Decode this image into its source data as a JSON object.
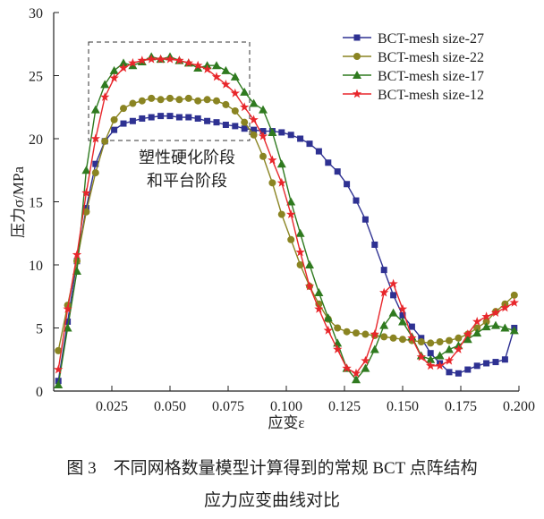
{
  "chart_data": {
    "type": "line",
    "xlabel": "应变ε",
    "ylabel": "压力σ/MPa",
    "xlim": [
      0,
      0.2
    ],
    "ylim": [
      0,
      30
    ],
    "xticks": [
      "0.025",
      "0.050",
      "0.075",
      "0.100",
      "0.125",
      "0.150",
      "0.175",
      "0.200"
    ],
    "xtick_values": [
      0.025,
      0.05,
      0.075,
      0.1,
      0.125,
      0.15,
      0.175,
      0.2
    ],
    "yticks": [
      "0",
      "5",
      "10",
      "15",
      "20",
      "25",
      "30"
    ],
    "ytick_values": [
      0,
      5,
      10,
      15,
      20,
      25,
      30
    ],
    "grid": false,
    "legend": "top-right",
    "annotation": [
      "塑性硬化阶段",
      "和平台阶段"
    ],
    "x": [
      0.002,
      0.006,
      0.01,
      0.014,
      0.018,
      0.022,
      0.026,
      0.03,
      0.034,
      0.038,
      0.042,
      0.046,
      0.05,
      0.054,
      0.058,
      0.062,
      0.066,
      0.07,
      0.074,
      0.078,
      0.082,
      0.086,
      0.09,
      0.094,
      0.098,
      0.102,
      0.106,
      0.11,
      0.114,
      0.118,
      0.122,
      0.126,
      0.13,
      0.134,
      0.138,
      0.142,
      0.146,
      0.15,
      0.154,
      0.158,
      0.162,
      0.166,
      0.17,
      0.174,
      0.178,
      0.182,
      0.186,
      0.19,
      0.194,
      0.198
    ],
    "series": [
      {
        "name": "BCT-mesh size-27",
        "color": "#2e3192",
        "marker": "square",
        "values": [
          0.8,
          5.5,
          10.3,
          14.5,
          18.0,
          19.8,
          20.7,
          21.2,
          21.4,
          21.6,
          21.7,
          21.8,
          21.8,
          21.7,
          21.7,
          21.6,
          21.4,
          21.3,
          21.1,
          21.0,
          20.8,
          20.7,
          20.6,
          20.6,
          20.5,
          20.3,
          20.0,
          19.6,
          19.0,
          18.1,
          17.4,
          16.4,
          15.1,
          13.6,
          11.6,
          9.6,
          7.6,
          6.0,
          5.1,
          4.2,
          3.0,
          2.2,
          1.5,
          1.4,
          1.7,
          2.0,
          2.2,
          2.3,
          2.5,
          5.0
        ]
      },
      {
        "name": "BCT-mesh size-22",
        "color": "#8a8422",
        "marker": "circle",
        "values": [
          3.2,
          6.8,
          10.3,
          14.2,
          17.3,
          19.8,
          21.5,
          22.4,
          22.8,
          23.0,
          23.2,
          23.1,
          23.2,
          23.1,
          23.2,
          23.0,
          23.1,
          23.0,
          22.7,
          22.2,
          21.3,
          20.3,
          18.6,
          16.5,
          14.0,
          12.0,
          10.0,
          8.3,
          6.9,
          5.7,
          5.0,
          4.7,
          4.6,
          4.5,
          4.4,
          4.3,
          4.2,
          4.1,
          4.0,
          3.9,
          3.8,
          3.9,
          4.0,
          4.2,
          4.5,
          5.0,
          5.5,
          6.3,
          6.9,
          7.6
        ]
      },
      {
        "name": "BCT-mesh size-17",
        "color": "#2f7a1f",
        "marker": "triangle",
        "values": [
          0.5,
          5.0,
          9.5,
          17.5,
          22.3,
          24.3,
          25.4,
          26.0,
          25.8,
          26.1,
          26.5,
          26.3,
          26.5,
          26.2,
          26.0,
          25.6,
          25.8,
          25.8,
          25.4,
          24.9,
          23.7,
          22.8,
          22.3,
          20.5,
          18.0,
          15.0,
          12.5,
          10.0,
          7.8,
          5.8,
          3.8,
          1.8,
          0.9,
          1.8,
          3.3,
          5.2,
          6.2,
          5.5,
          4.3,
          2.8,
          2.5,
          2.8,
          3.3,
          3.6,
          4.1,
          4.6,
          5.1,
          5.2,
          5.0,
          4.8
        ]
      },
      {
        "name": "BCT-mesh size-12",
        "color": "#e8262b",
        "marker": "star",
        "values": [
          1.7,
          6.5,
          10.8,
          15.7,
          20.0,
          23.3,
          24.8,
          25.6,
          26.0,
          26.2,
          26.3,
          26.3,
          26.3,
          26.2,
          26.0,
          25.8,
          25.5,
          24.9,
          24.3,
          23.6,
          22.5,
          21.5,
          20.2,
          18.3,
          16.5,
          14.0,
          11.0,
          8.3,
          6.5,
          4.8,
          3.3,
          1.8,
          1.4,
          2.4,
          4.5,
          7.8,
          8.5,
          6.5,
          4.2,
          2.7,
          2.0,
          2.0,
          2.4,
          3.3,
          4.5,
          5.5,
          5.9,
          6.2,
          6.6,
          7.0
        ]
      }
    ]
  },
  "caption": {
    "line1": "图 3　不同网格数量模型计算得到的常规 BCT 点阵结构",
    "line2": "应力应变曲线对比"
  }
}
